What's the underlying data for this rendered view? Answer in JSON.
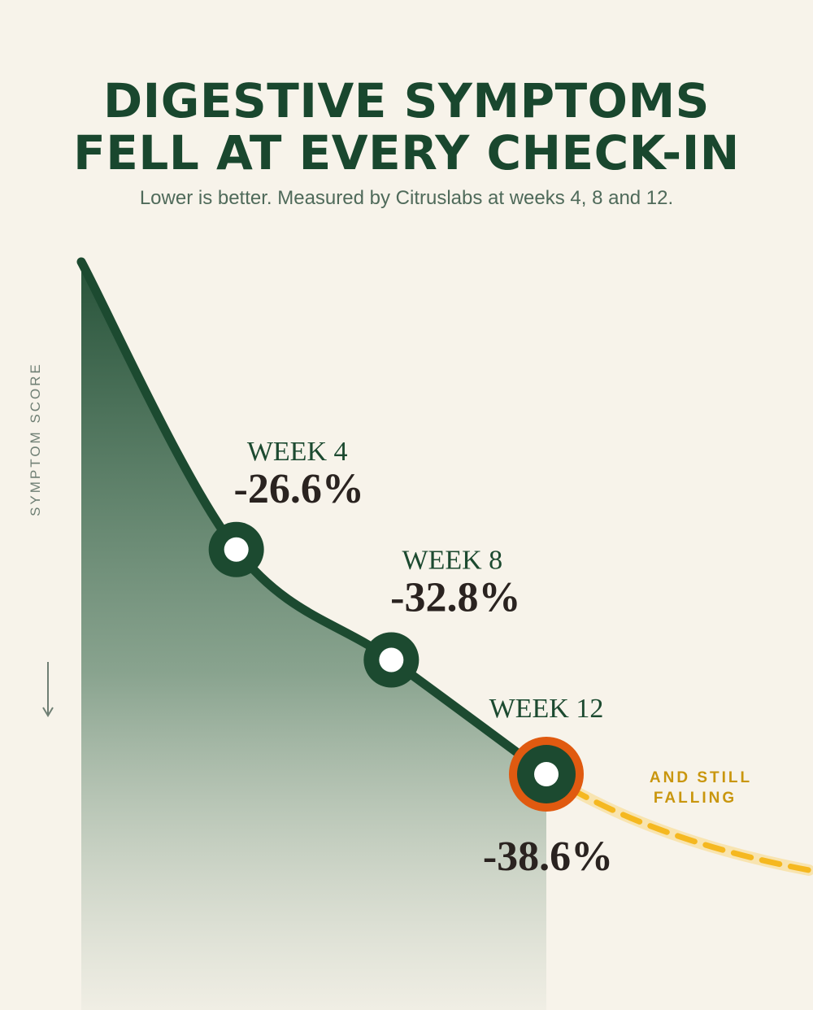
{
  "title_lines": [
    "DIGESTIVE SYMPTOMS",
    "FELL AT EVERY CHECK-IN"
  ],
  "subtitle": "Lower is better. Measured by Citruslabs at weeks 4, 8 and 12.",
  "y_axis_label": "SYMPTOM SCORE",
  "trend_note_lines": [
    "AND STILL",
    "FALLING"
  ],
  "colors": {
    "background": "#f7f3ea",
    "line": "#1c4a30",
    "highlight": "#e05a10",
    "trend": "#f5b820",
    "trend_text": "#c9960e",
    "value_text": "#2a2320"
  },
  "chart_data": {
    "type": "line",
    "title": "DIGESTIVE SYMPTOMS FELL AT EVERY CHECK-IN",
    "subtitle": "Lower is better. Measured by Citruslabs at weeks 4, 8 and 12.",
    "ylabel": "SYMPTOM SCORE",
    "xlabel": "",
    "x": [
      0,
      4,
      8,
      12
    ],
    "values": [
      0,
      -26.6,
      -32.8,
      -38.6
    ],
    "ylim": [
      -38.6,
      0
    ],
    "grid": false,
    "points": [
      {
        "label": "WEEK 4",
        "value_label": "-26.6%",
        "week": 4,
        "value": -26.6
      },
      {
        "label": "WEEK 8",
        "value_label": "-32.8%",
        "week": 8,
        "value": -32.8
      },
      {
        "label": "WEEK 12",
        "value_label": "-38.6%",
        "week": 12,
        "value": -38.6
      }
    ],
    "annotation": "AND STILL FALLING"
  }
}
